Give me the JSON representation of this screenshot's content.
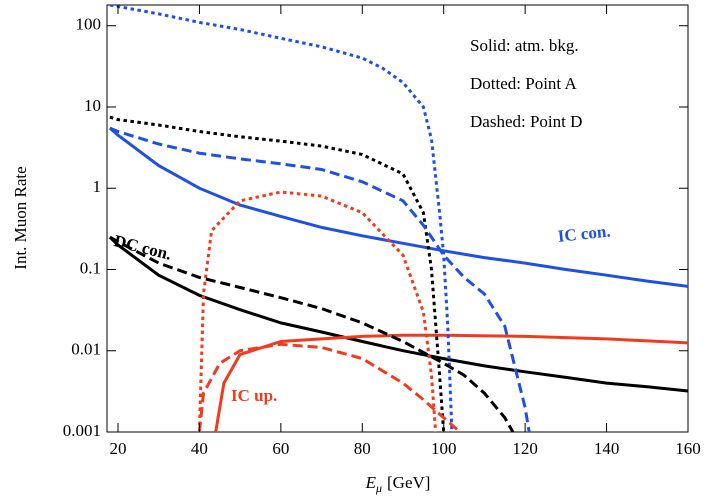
{
  "chart_data": {
    "type": "line",
    "ylabel": "Int. Muon Rate",
    "xlabel": [
      "E",
      "μ",
      "[GeV]"
    ],
    "xlim": [
      17.3,
      160
    ],
    "xticks": [
      20,
      40,
      60,
      80,
      100,
      120,
      140,
      160
    ],
    "ylim": [
      0.001,
      180
    ],
    "yticks": [
      0.001,
      0.01,
      0.1,
      1,
      10,
      100
    ],
    "log_y": true,
    "annotations": [
      "Solid: atm. bkg.",
      "Dotted: Point A",
      "Dashed: Point D",
      "DC con.",
      "IC con.",
      "IC up."
    ],
    "series": [
      {
        "color": "#1f50e6",
        "dash": "solid",
        "x": [
          18,
          20,
          30,
          40,
          50,
          60,
          70,
          80,
          90,
          100,
          110,
          120,
          130,
          140,
          150,
          160
        ],
        "values": [
          5.5,
          4.5,
          1.9,
          1.0,
          0.62,
          0.45,
          0.33,
          0.26,
          0.21,
          0.17,
          0.14,
          0.12,
          0.1,
          0.085,
          0.072,
          0.062
        ]
      },
      {
        "color": "#000000",
        "dash": "solid",
        "x": [
          18,
          20,
          30,
          40,
          50,
          60,
          70,
          80,
          90,
          100,
          110,
          120,
          130,
          140,
          150,
          160
        ],
        "values": [
          0.25,
          0.2,
          0.085,
          0.048,
          0.032,
          0.022,
          0.017,
          0.013,
          0.01,
          0.008,
          0.0065,
          0.0055,
          0.0047,
          0.004,
          0.0036,
          0.0032
        ]
      },
      {
        "color": "#f03c1e",
        "dash": "solid",
        "x": [
          44,
          46,
          50,
          60,
          70,
          80,
          90,
          100,
          120,
          140,
          160
        ],
        "values": [
          0.001,
          0.004,
          0.009,
          0.013,
          0.014,
          0.015,
          0.0155,
          0.0155,
          0.015,
          0.014,
          0.0125
        ]
      },
      {
        "color": "#1f50e6",
        "dash": "dotted",
        "x": [
          18,
          30,
          40,
          50,
          60,
          70,
          80,
          85,
          90,
          95,
          97,
          99,
          100,
          101,
          102
        ],
        "values": [
          180,
          140,
          110,
          90,
          70,
          55,
          40,
          30,
          20,
          10,
          4,
          0.5,
          0.15,
          0.02,
          0.001
        ]
      },
      {
        "color": "#000000",
        "dash": "dotted",
        "x": [
          18,
          20,
          30,
          40,
          50,
          60,
          70,
          80,
          90,
          95,
          97,
          99,
          100
        ],
        "values": [
          7.5,
          7,
          6,
          5,
          4.3,
          3.8,
          3.3,
          2.6,
          1.5,
          0.5,
          0.1,
          0.005,
          0.001
        ]
      },
      {
        "color": "#f03c1e",
        "dash": "dotted",
        "x": [
          40,
          41,
          43,
          50,
          60,
          70,
          80,
          90,
          95,
          97,
          98
        ],
        "values": [
          0.001,
          0.05,
          0.3,
          0.7,
          0.9,
          0.8,
          0.5,
          0.15,
          0.03,
          0.005,
          0.001
        ]
      },
      {
        "color": "#1f50e6",
        "dash": "dashed",
        "x": [
          18,
          20,
          30,
          40,
          50,
          60,
          70,
          80,
          90,
          95,
          100,
          105,
          110,
          115,
          118,
          120,
          121
        ],
        "values": [
          5.5,
          5,
          3.5,
          2.7,
          2.3,
          2,
          1.7,
          1.2,
          0.7,
          0.35,
          0.15,
          0.08,
          0.05,
          0.02,
          0.005,
          0.002,
          0.001
        ]
      },
      {
        "color": "#000000",
        "dash": "dashed",
        "x": [
          18,
          20,
          30,
          40,
          50,
          60,
          70,
          80,
          90,
          100,
          105,
          110,
          115,
          117
        ],
        "values": [
          0.25,
          0.22,
          0.12,
          0.08,
          0.06,
          0.045,
          0.033,
          0.022,
          0.013,
          0.007,
          0.005,
          0.003,
          0.0015,
          0.001
        ]
      },
      {
        "color": "#f03c1e",
        "dash": "dashed",
        "x": [
          40,
          41,
          45,
          50,
          60,
          70,
          80,
          90,
          95,
          100,
          104
        ],
        "values": [
          0.001,
          0.003,
          0.007,
          0.01,
          0.012,
          0.011,
          0.008,
          0.004,
          0.0025,
          0.0015,
          0.001
        ]
      }
    ]
  }
}
